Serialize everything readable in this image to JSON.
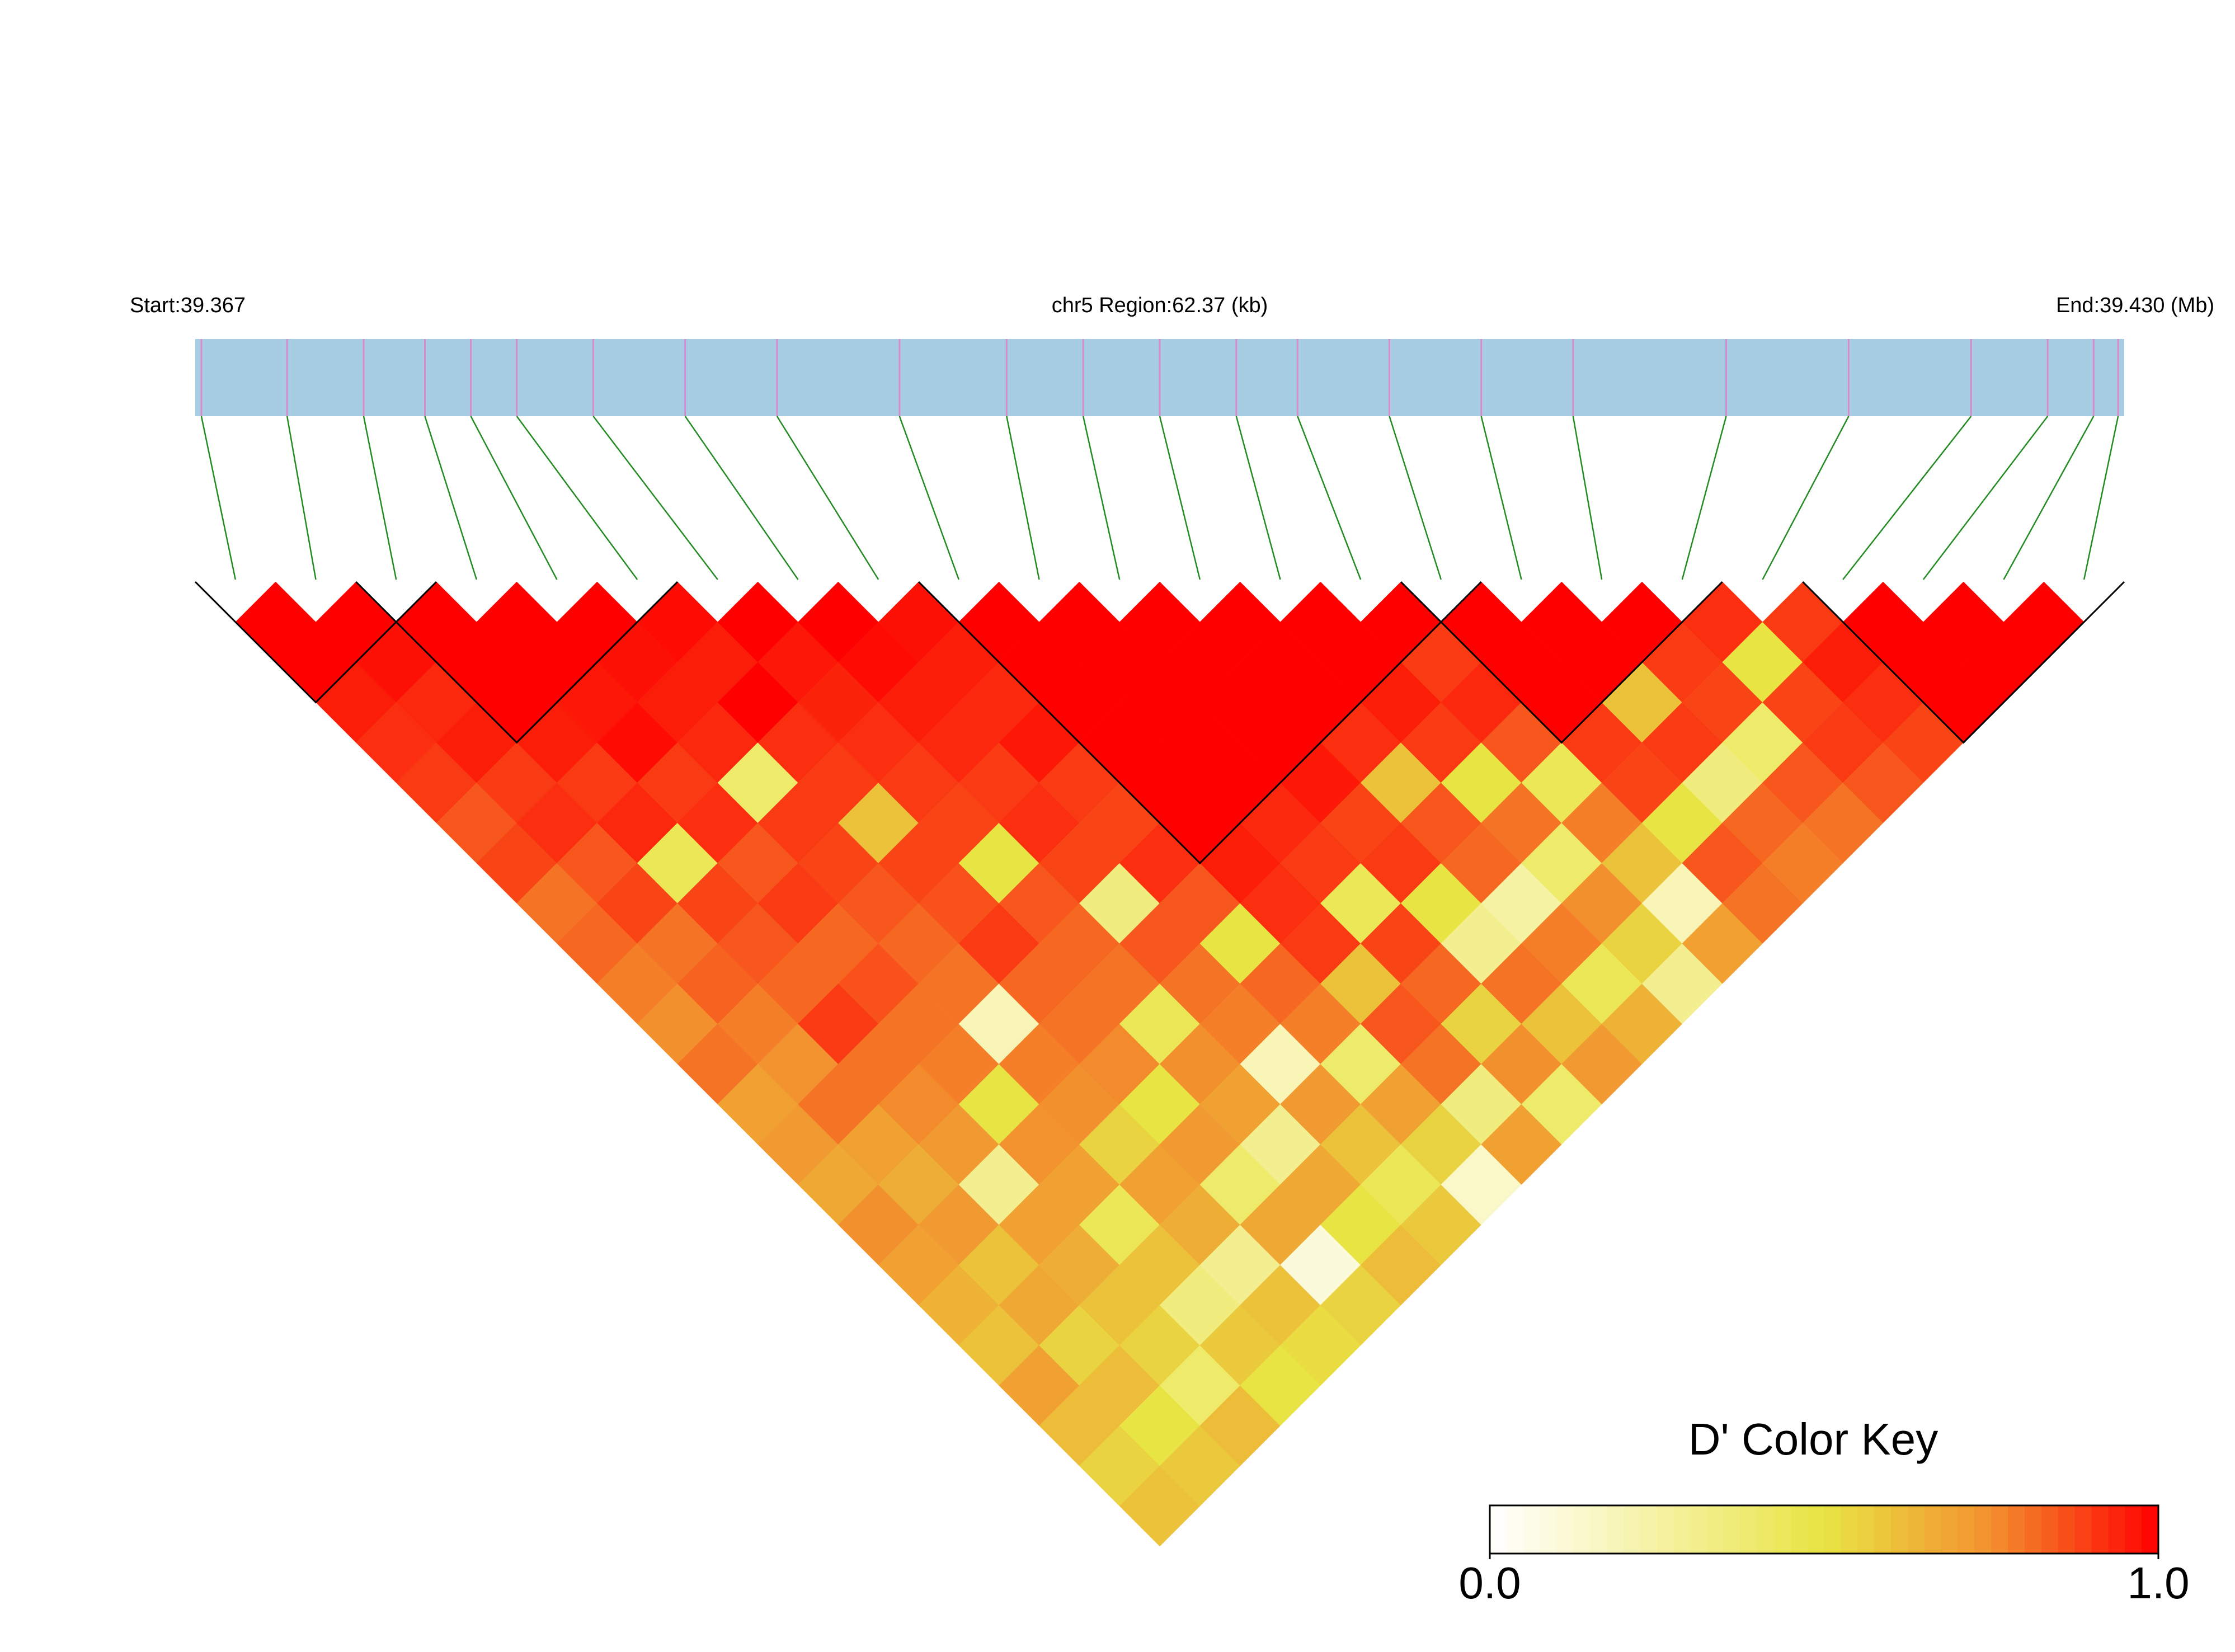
{
  "chart_data": {
    "type": "ld-heatmap",
    "title": "chr5 Region:62.37 (kb)",
    "start_label": "Start:39.367",
    "end_label": "End:39.430 (Mb)",
    "x": [
      39.3672,
      39.37,
      39.3725,
      39.3745,
      39.376,
      39.3775,
      39.38,
      39.383,
      39.386,
      39.39,
      39.3935,
      39.396,
      39.3985,
      39.401,
      39.403,
      39.406,
      39.409,
      39.412,
      39.417,
      39.421,
      39.425,
      39.4275,
      39.429,
      39.4298
    ],
    "xlim": [
      39.367,
      39.43
    ],
    "dprime": [
      [
        1,
        1,
        0.95,
        0.92,
        0.9,
        0.85,
        0.88,
        0.8,
        0.82,
        0.78,
        0.75,
        0.8,
        0.7,
        0.72,
        0.68,
        0.75,
        0.7,
        0.65,
        0.6,
        0.7,
        0.62,
        0.55,
        0.6
      ],
      [
        1,
        0.97,
        0.93,
        0.95,
        0.9,
        0.92,
        0.85,
        0.88,
        0.8,
        0.83,
        0.78,
        0.74,
        0.8,
        0.7,
        0.66,
        0.72,
        0.6,
        0.68,
        0.55,
        0.62,
        0.5,
        0.58
      ],
      [
        1,
        1,
        1,
        0.95,
        0.9,
        0.93,
        0.45,
        0.88,
        0.85,
        0.82,
        0.9,
        0.8,
        0.76,
        0.72,
        0.3,
        0.7,
        0.66,
        0.6,
        0.55,
        0.4,
        0.62
      ],
      [
        1,
        1,
        0.96,
        0.98,
        0.9,
        0.92,
        0.85,
        0.9,
        0.82,
        0.86,
        0.8,
        0.78,
        0.5,
        0.74,
        0.7,
        0.45,
        0.6,
        0.35,
        0.58,
        0.5
      ],
      [
        1,
        0.97,
        0.95,
        0.93,
        0.4,
        0.9,
        0.88,
        0.85,
        0.82,
        0.8,
        0.2,
        0.78,
        0.75,
        0.55,
        0.7,
        0.66,
        0.3,
        0.6,
        0.52
      ],
      [
        0.98,
        0.95,
        1,
        0.92,
        0.9,
        0.6,
        0.88,
        0.86,
        0.9,
        0.82,
        0.8,
        0.76,
        0.5,
        0.72,
        0.4,
        0.68,
        0.1,
        0.55
      ],
      [
        1,
        0.96,
        0.94,
        0.92,
        0.9,
        0.88,
        0.5,
        0.85,
        0.82,
        0.8,
        0.45,
        0.75,
        0.7,
        0.3,
        0.68,
        0.5,
        0.62
      ],
      [
        1,
        0.98,
        0.95,
        0.93,
        0.9,
        0.92,
        0.88,
        0.35,
        0.85,
        0.8,
        0.78,
        0.2,
        0.72,
        0.6,
        0.45,
        0.58
      ],
      [
        0.97,
        0.95,
        0.93,
        0.96,
        0.9,
        0.88,
        0.92,
        0.85,
        0.5,
        0.82,
        0.78,
        0.4,
        0.7,
        0.55,
        0.15
      ],
      [
        1,
        1,
        1,
        1,
        1,
        1,
        0.95,
        0.92,
        0.9,
        0.6,
        0.85,
        0.8,
        0.35,
        0.7
      ],
      [
        1,
        1,
        1,
        1,
        1,
        0.93,
        0.9,
        0.45,
        0.88,
        0.82,
        0.55,
        0.75,
        0.4
      ],
      [
        1,
        1,
        1,
        1,
        0.96,
        0.88,
        0.9,
        0.5,
        0.3,
        0.8,
        0.6,
        0.72
      ],
      [
        1,
        1,
        1,
        0.92,
        0.6,
        0.85,
        0.82,
        0.25,
        0.78,
        0.45,
        0.65
      ],
      [
        1,
        1,
        0.95,
        0.9,
        0.5,
        0.8,
        0.4,
        0.75,
        0.55,
        0.3
      ],
      [
        1,
        0.9,
        0.93,
        0.85,
        0.45,
        0.78,
        0.6,
        0.2,
        0.7
      ],
      [
        1,
        1,
        1,
        0.9,
        0.88,
        0.5,
        0.85,
        0.8
      ],
      [
        1,
        1,
        0.6,
        0.9,
        0.35,
        0.82,
        0.78
      ],
      [
        1,
        0.9,
        0.88,
        0.4,
        0.85,
        0.8
      ],
      [
        0.92,
        0.5,
        0.88,
        0.9,
        0.85
      ],
      [
        0.9,
        0.95,
        0.92,
        0.88
      ],
      [
        1,
        1,
        1
      ],
      [
        1,
        1
      ],
      [
        1
      ]
    ],
    "blocks": [
      [
        0,
        2
      ],
      [
        2,
        5
      ],
      [
        9,
        15
      ],
      [
        15,
        18
      ],
      [
        20,
        23
      ]
    ],
    "gene_bar_color": "#a6cde3",
    "marker_color": "#d88bd0",
    "connector_color": "#228b22",
    "legend": {
      "title": "D' Color Key",
      "ticks": [
        {
          "value": 0,
          "label": "0.0"
        },
        {
          "value": 1,
          "label": "1.0"
        }
      ],
      "color_stops": [
        "#ffffff",
        "#f6f2a4",
        "#e8e444",
        "#f2902e",
        "#ff0000"
      ]
    }
  }
}
